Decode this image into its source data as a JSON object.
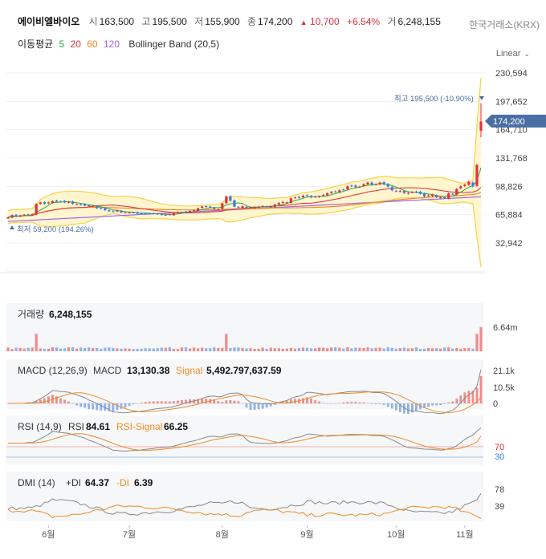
{
  "header": {
    "name": "에이비엘바이오",
    "open_label": "시",
    "open": "163,500",
    "high_label": "고",
    "high": "195,500",
    "low_label": "저",
    "low": "155,900",
    "close_label": "종",
    "close": "174,200",
    "change_arrow": "▲",
    "change": "10,700",
    "change_pct": "+6.54%",
    "volume_label": "거",
    "volume": "6,248,155",
    "exchange": "한국거래소(KRX)"
  },
  "ma_legend": {
    "label": "이동평균",
    "p5": "5",
    "p20": "20",
    "p60": "60",
    "p120": "120",
    "bb": "Bollinger Band (20,5)"
  },
  "colors": {
    "ma5": "#27a844",
    "ma20": "#e0313d",
    "ma60": "#f08a24",
    "ma120": "#a364e8",
    "up": "#e0313d",
    "down": "#3d7ae0",
    "bb": "#f5d246",
    "bbfill": "#fff6d0",
    "price_tag": "#4a6fa5"
  },
  "scale_button": {
    "label": "Linear",
    "icon": "chevron-down-icon"
  },
  "price_panel": {
    "y_ticks": [
      "230,594",
      "197,652",
      "164,710",
      "131,768",
      "98,826",
      "65,884",
      "32,942"
    ],
    "current_price": "174,200",
    "high_note": "최고 195,500 (-10.90%)",
    "low_note": "최저 59,200 (194.26%)"
  },
  "volume_panel": {
    "label": "거래량",
    "value": "6,248,155",
    "y_ticks": [
      "6.64m"
    ]
  },
  "macd_panel": {
    "label": "MACD (12,26,9)",
    "macd_label": "MACD",
    "macd_value": "13,130.38",
    "signal_label": "Signal",
    "signal_value": "5,492.797,637.59",
    "y_ticks": [
      "21.1k",
      "10.5k",
      "0"
    ]
  },
  "rsi_panel": {
    "label": "RSI (14,9)",
    "rsi_label": "RSI",
    "rsi_value": "84.61",
    "signal_label": "RSI-Signal",
    "signal_value": "66.25",
    "y_ticks": [
      "70",
      "30"
    ]
  },
  "dmi_panel": {
    "label": "DMI (14)",
    "pdi_label": "+DI",
    "pdi_value": "64.37",
    "mdi_label": "-DI",
    "mdi_value": "6.39",
    "y_ticks": [
      "78",
      "39"
    ]
  },
  "x_axis": {
    "labels": [
      "6월",
      "7월",
      "8월",
      "9월",
      "10월",
      "11월"
    ]
  },
  "chart_data": {
    "type": "candlestick",
    "price_axis": {
      "ylim": [
        0,
        230594
      ]
    },
    "x_labels": [
      "6월",
      "7월",
      "8월",
      "9월",
      "10월",
      "11월"
    ],
    "last_bar": {
      "open": 163500,
      "high": 195500,
      "low": 155900,
      "close": 174200,
      "volume": 6248155
    },
    "period_high": 195500,
    "period_low": 59200,
    "series": [
      {
        "name": "5",
        "role": "moving-average"
      },
      {
        "name": "20",
        "role": "moving-average"
      },
      {
        "name": "60",
        "role": "moving-average"
      },
      {
        "name": "120",
        "role": "moving-average"
      },
      {
        "name": "Bollinger Band (20,5)",
        "role": "band"
      }
    ],
    "indicators": {
      "volume": {
        "last": 6248155,
        "ymax": 6640000
      },
      "macd": {
        "macd": 13130.38,
        "ymax": 21100
      },
      "rsi": {
        "rsi": 84.61,
        "signal": 66.25,
        "levels": [
          70,
          30
        ]
      },
      "dmi": {
        "plus_di": 64.37,
        "minus_di": 6.39,
        "levels": [
          78,
          39
        ]
      }
    }
  }
}
